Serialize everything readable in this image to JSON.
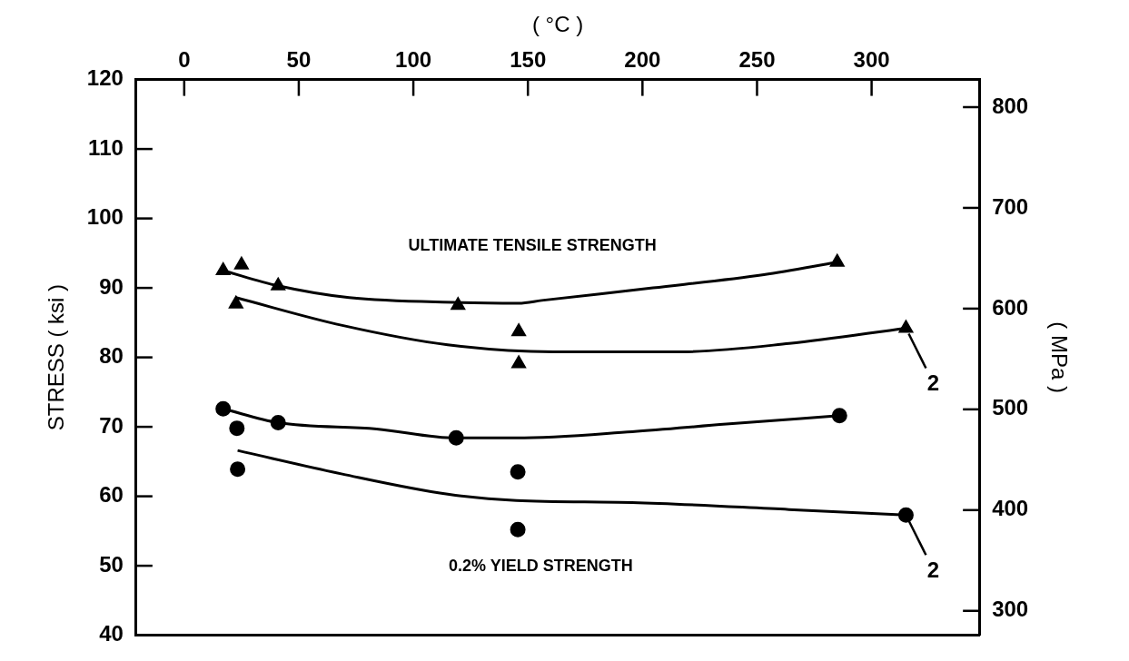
{
  "chart_data": {
    "type": "scatter",
    "xlabel": "( °C )",
    "ylabel": "STRESS ( ksi )",
    "y2label": "( MPa )",
    "xlim": [
      -21,
      347
    ],
    "xticks": [
      0,
      50,
      100,
      150,
      200,
      250,
      300
    ],
    "ylim": [
      40,
      120
    ],
    "yticks": [
      40,
      50,
      60,
      70,
      80,
      90,
      100,
      110,
      120
    ],
    "y2lim": [
      275.8,
      827.4
    ],
    "y2ticks": [
      300,
      400,
      500,
      600,
      700,
      800
    ],
    "grid": false,
    "legend": false,
    "series": [
      {
        "marker": "triangle",
        "color": "#000000",
        "x": [
          17,
          41,
          119.5,
          285
        ],
        "values": [
          92.5,
          90.3,
          87.5,
          93.7
        ]
      },
      {
        "marker": "triangle",
        "color": "#000000",
        "x": [
          25,
          22.6,
          146,
          146,
          315
        ],
        "values": [
          93.3,
          87.7,
          83.7,
          79.1,
          84.2
        ]
      },
      {
        "marker": "circle",
        "color": "#000000",
        "x": [
          17,
          41,
          118.7,
          286
        ],
        "values": [
          72.6,
          70.6,
          68.4,
          71.6
        ]
      },
      {
        "marker": "circle",
        "color": "#000000",
        "x": [
          23,
          23.3,
          145.6,
          145.6,
          315
        ],
        "values": [
          69.8,
          63.9,
          63.5,
          55.2,
          57.3
        ]
      },
      {
        "type": "line",
        "marker": "none",
        "color": "#000000",
        "x": [
          17,
          41,
          72,
          119.5,
          146,
          156,
          204.6,
          253,
          285
        ],
        "values": [
          92.5,
          90.3,
          88.6,
          87.9,
          87.8,
          88.2,
          90,
          91.9,
          93.7
        ]
      },
      {
        "type": "line",
        "marker": "none",
        "color": "#000000",
        "x": [
          22.6,
          69,
          115,
          161,
          195.5,
          216,
          264,
          315
        ],
        "values": [
          88.6,
          84.6,
          81.8,
          80.8,
          80.8,
          80.8,
          82,
          84.2
        ]
      },
      {
        "type": "line",
        "marker": "none",
        "color": "#000000",
        "x": [
          17,
          41,
          84,
          118.7,
          145,
          195.5,
          236.6,
          286
        ],
        "values": [
          72.6,
          70.6,
          69.7,
          68.4,
          68.4,
          69.3,
          70.4,
          71.6
        ]
      },
      {
        "type": "line",
        "marker": "none",
        "color": "#000000",
        "x": [
          23.3,
          69,
          115,
          145,
          195.5,
          264,
          315
        ],
        "values": [
          66.6,
          63.2,
          60.3,
          59.4,
          59.1,
          58.1,
          57.3
        ]
      }
    ],
    "annotations": [
      "ULTIMATE TENSILE STRENGTH",
      "0.2% YIELD STRENGTH",
      {
        "text": "2",
        "x": 315,
        "y": 84.2
      },
      {
        "text": "2",
        "x": 315,
        "y": 57.3
      }
    ]
  }
}
